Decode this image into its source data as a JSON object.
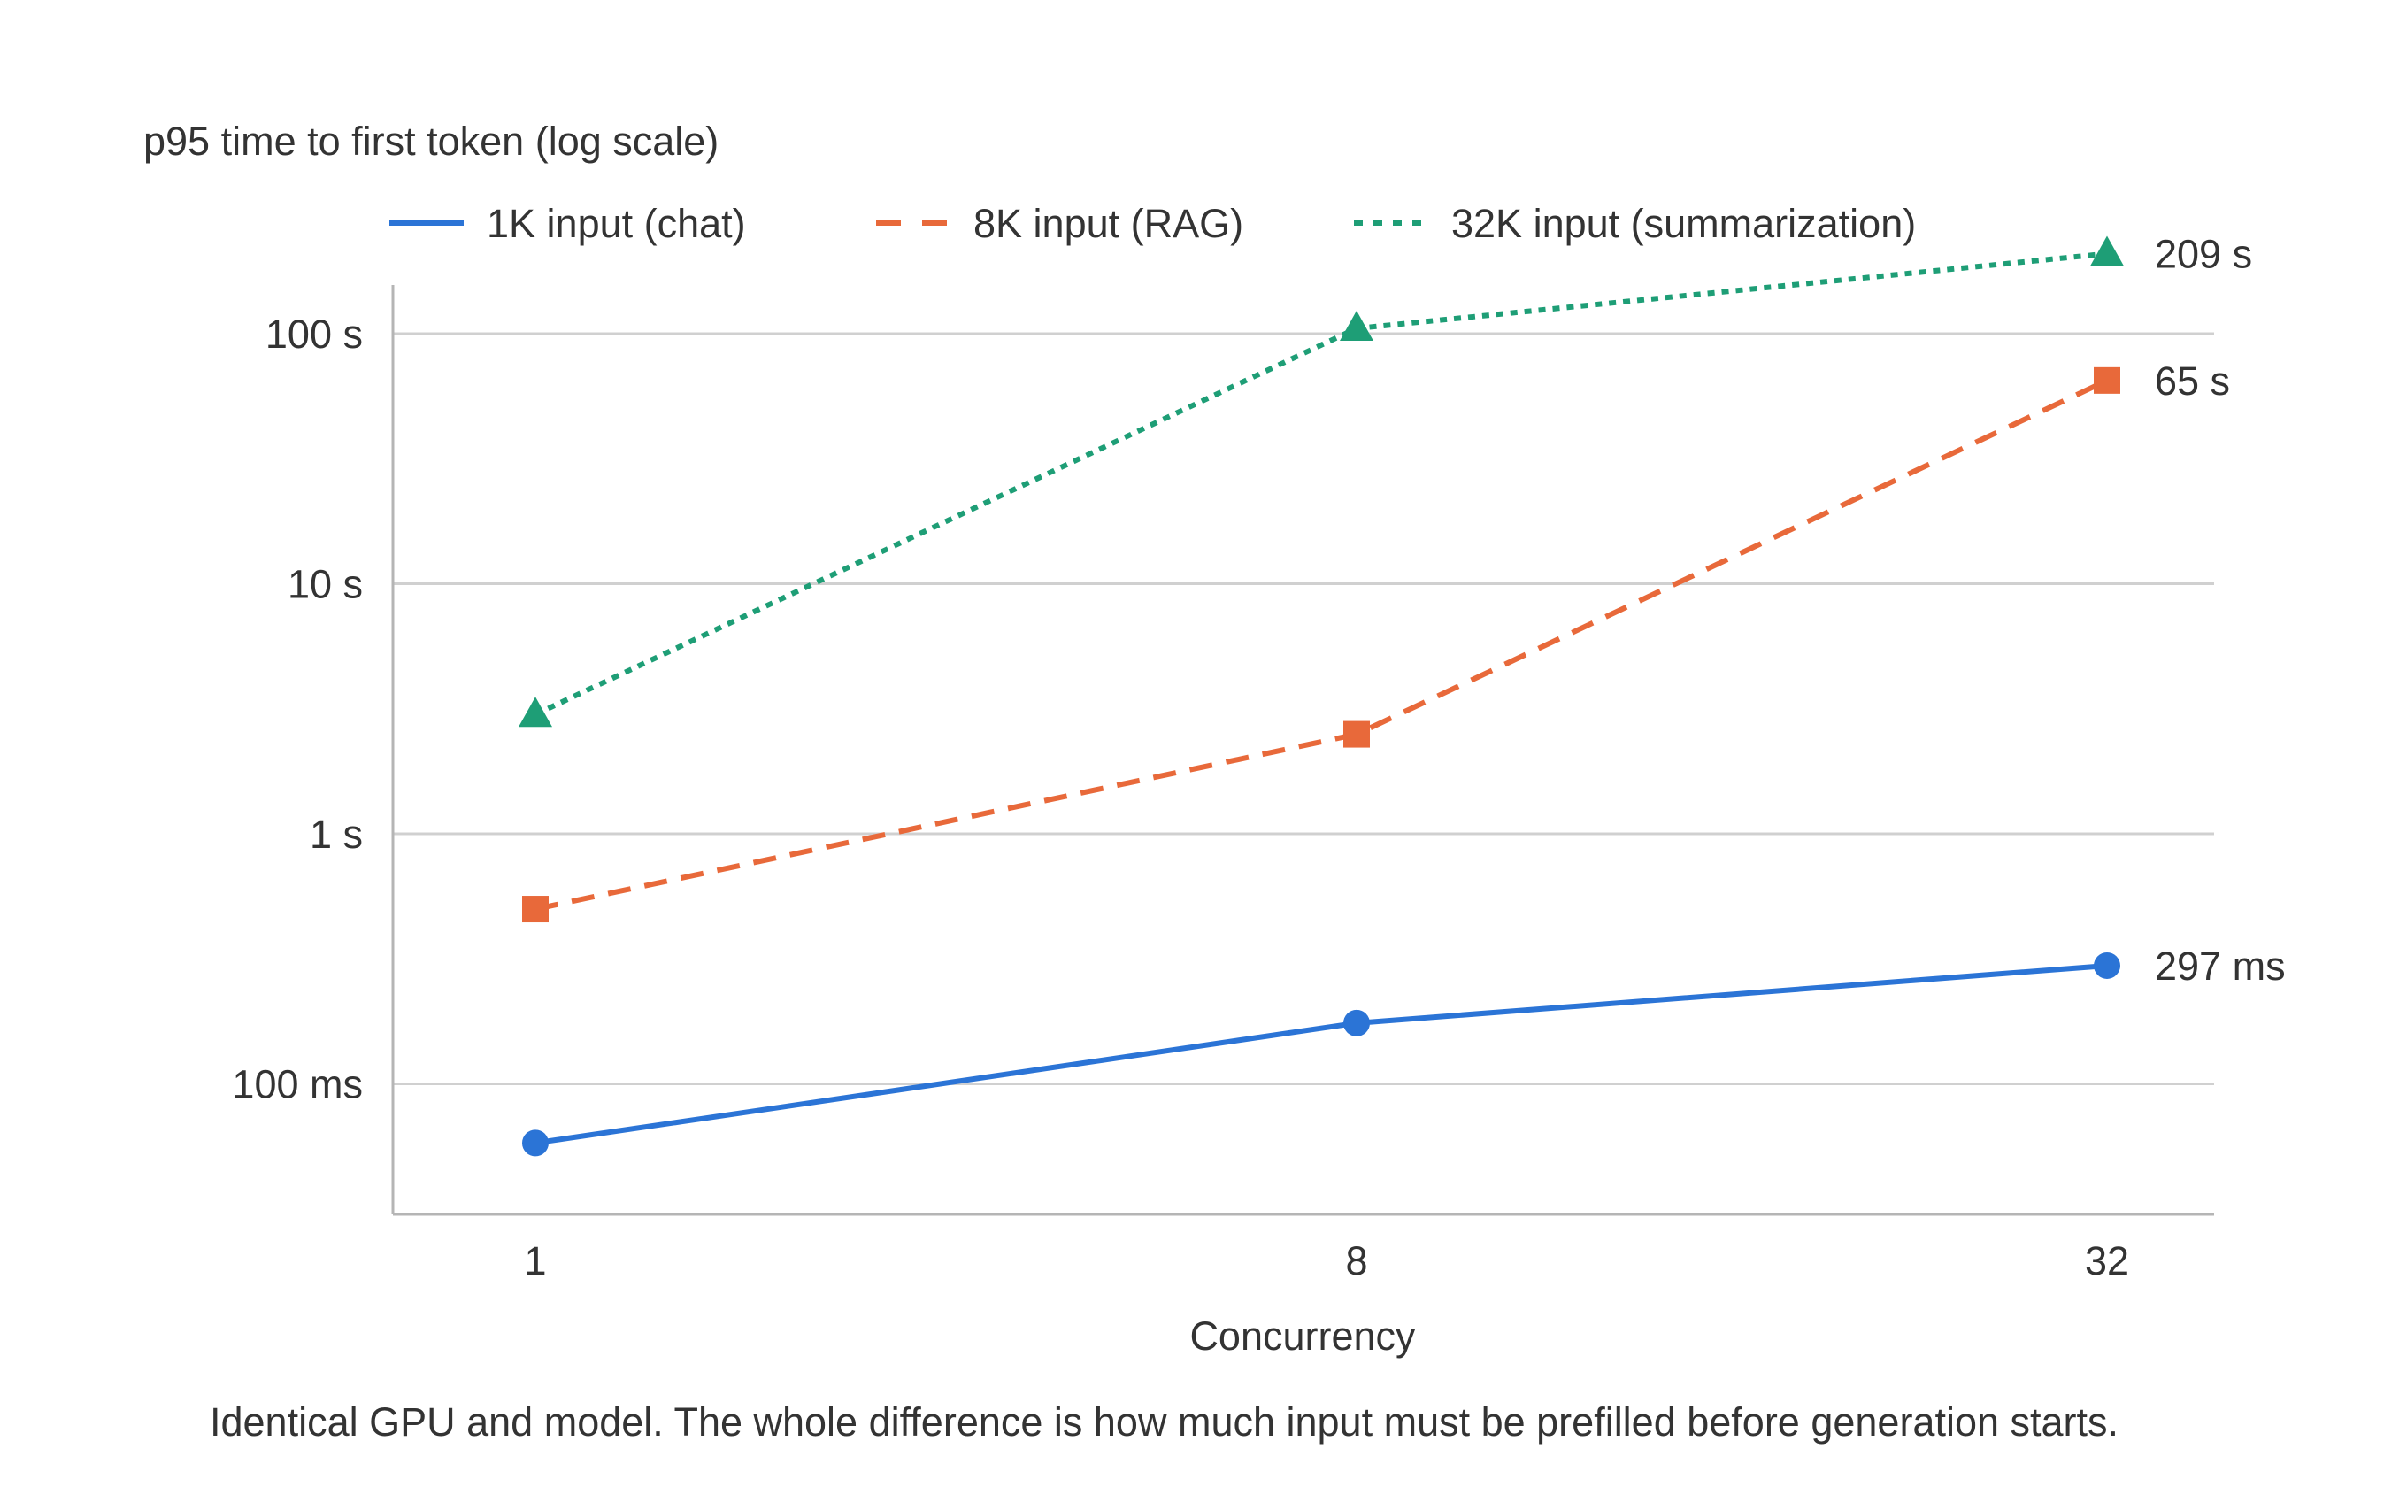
{
  "colors": {
    "chat": "#2b74d6",
    "rag": "#e8693a",
    "summ": "#1e9e76",
    "grid": "#d0d0d0",
    "axis": "#b5b5b5",
    "text": "#333333"
  },
  "chart_data": {
    "type": "line",
    "title": "p95 time to first token (log scale)",
    "xlabel": "Concurrency",
    "ylabel": "",
    "caption": "Identical GPU and model. The whole difference is how much input must be prefilled before generation starts.",
    "x_scale": "categorical",
    "y_scale": "log",
    "ylim_seconds": [
      0.035,
      160
    ],
    "y_ticks": [
      {
        "value": 0.1,
        "label": "100 ms"
      },
      {
        "value": 1,
        "label": "1 s"
      },
      {
        "value": 10,
        "label": "10 s"
      },
      {
        "value": 100,
        "label": "100 s"
      }
    ],
    "x_categories": [
      "1",
      "8",
      "32"
    ],
    "grid": true,
    "legend_position": "top",
    "series": [
      {
        "name": "1K input (chat)",
        "color_key": "chat",
        "line_style": "solid",
        "marker": "circle",
        "values_seconds": [
          0.058,
          0.175,
          0.297
        ],
        "end_label": "297 ms"
      },
      {
        "name": "8K input (RAG)",
        "color_key": "rag",
        "line_style": "dashed",
        "marker": "square",
        "values_seconds": [
          0.5,
          2.5,
          65
        ],
        "end_label": "65 s"
      },
      {
        "name": "32K input (summarization)",
        "color_key": "summ",
        "line_style": "dotted",
        "marker": "triangle",
        "values_seconds": [
          3.0,
          105,
          209
        ],
        "end_label": "209 s"
      }
    ]
  }
}
